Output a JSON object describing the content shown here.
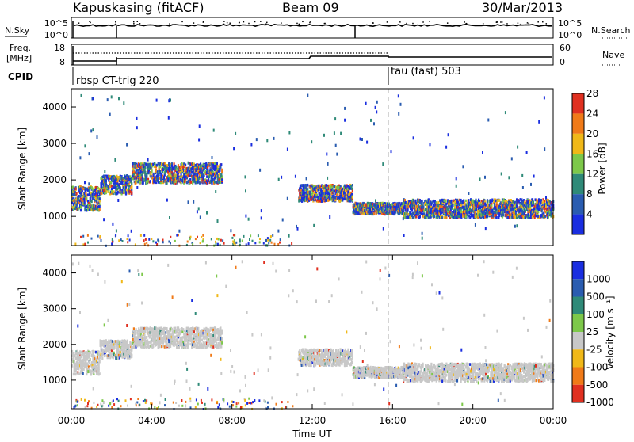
{
  "header": {
    "title": "Kapuskasing (fitACF)",
    "beam": "Beam 09",
    "date": "30/Mar/2013"
  },
  "top_panels": {
    "nsky_label": "N.Sky",
    "nsky_ticks": [
      "10^5",
      "10^0"
    ],
    "nsearch_label": "N.Search",
    "nsearch_ticks": [
      "10^5",
      "10^0"
    ],
    "freq_label": "Freq.",
    "freq_unit": "[MHz]",
    "freq_ticks": [
      "18",
      "8"
    ],
    "nave_label": "Nave",
    "nave_ticks": [
      "60",
      "0"
    ],
    "cpid_label": "CPID",
    "cpid_segments": [
      {
        "name": "rbsp CT-trig 220",
        "start_h": 0.0
      },
      {
        "name": "tau (fast) 503",
        "start_h": 16.0
      }
    ]
  },
  "chart_data": [
    {
      "type": "heatmap",
      "title": "",
      "xlabel": "",
      "ylabel": "Slant Range [km]",
      "xlim_hours": [
        0,
        24
      ],
      "ylim_km": [
        200,
        4500
      ],
      "yticks": [
        "1000",
        "2000",
        "3000",
        "4000"
      ],
      "colorbar": {
        "label": "Power [dB]",
        "ticks": [
          "4",
          "8",
          "12",
          "16",
          "20",
          "24",
          "28"
        ],
        "colors": [
          "#1a2ee0",
          "#2a5cb0",
          "#2f8a78",
          "#7dc84a",
          "#f0b818",
          "#f07a18",
          "#e03020"
        ]
      },
      "vertical_marker_hour": 16,
      "regions": [
        {
          "from_h": 0.0,
          "to_h": 1.4,
          "range_km": [
            1200,
            1850
          ]
        },
        {
          "from_h": 1.4,
          "to_h": 3.0,
          "range_km": [
            1650,
            2150
          ]
        },
        {
          "from_h": 3.0,
          "to_h": 7.5,
          "range_km": [
            1950,
            2500
          ]
        },
        {
          "from_h": 11.3,
          "to_h": 14.0,
          "range_km": [
            1450,
            1900
          ]
        },
        {
          "from_h": 14.0,
          "to_h": 16.5,
          "range_km": [
            1100,
            1400
          ]
        },
        {
          "from_h": 16.5,
          "to_h": 24.0,
          "range_km": [
            1000,
            1500
          ]
        }
      ]
    },
    {
      "type": "heatmap",
      "title": "",
      "xlabel": "Time UT",
      "ylabel": "Slant Range [km]",
      "xlim_hours": [
        0,
        24
      ],
      "ylim_km": [
        200,
        4500
      ],
      "yticks": [
        "1000",
        "2000",
        "3000",
        "4000"
      ],
      "xticks": [
        "00:00",
        "04:00",
        "08:00",
        "12:00",
        "16:00",
        "20:00",
        "00:00"
      ],
      "colorbar": {
        "label": "Velocity [m s⁻¹]",
        "ticks": [
          "1000",
          "500",
          "100",
          "25",
          "-25",
          "-100",
          "-500",
          "-1000"
        ],
        "colors": [
          "#1a2ee0",
          "#2a5cb0",
          "#2f8a78",
          "#7dc84a",
          "#c8c8c8",
          "#f0b818",
          "#f07a18",
          "#e03020"
        ]
      },
      "vertical_marker_hour": 16,
      "dominant_color": "#c8c8c8"
    }
  ]
}
